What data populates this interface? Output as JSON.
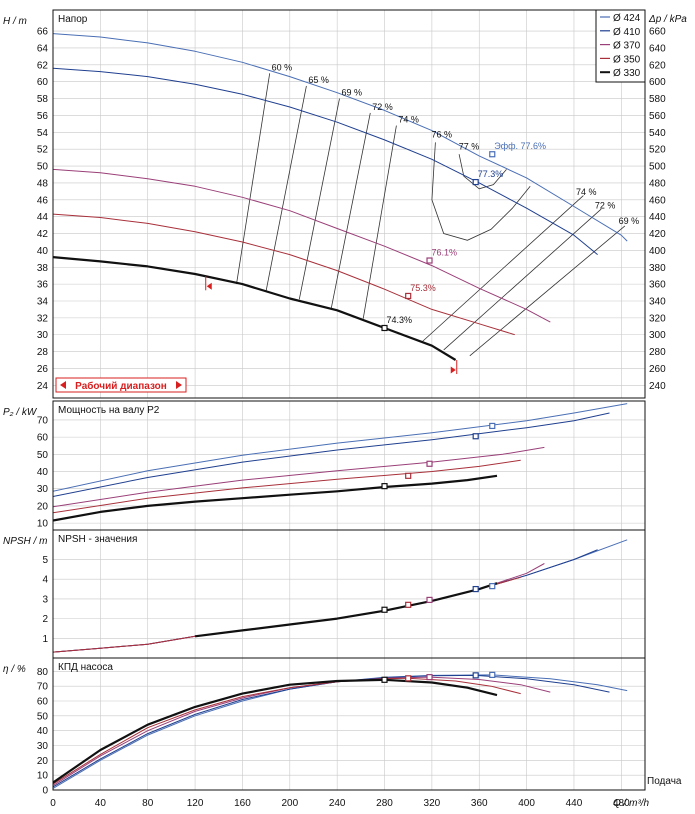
{
  "colors": {
    "d424": "#4a6fb5",
    "d410": "#1f3f8f",
    "d370": "#9a3f78",
    "d350": "#a8303a",
    "d330": "#111111",
    "eff_line": "#333333",
    "range": "#d81f1f"
  },
  "legend": {
    "items": [
      {
        "label": "Ø 424",
        "color_key": "d424"
      },
      {
        "label": "Ø 410",
        "color_key": "d410"
      },
      {
        "label": "Ø 370",
        "color_key": "d370"
      },
      {
        "label": "Ø 350",
        "color_key": "d350"
      },
      {
        "label": "Ø 330",
        "color_key": "d330"
      }
    ]
  },
  "x_axis": {
    "label": "Q / m³/h",
    "caption": "Подача",
    "range": [
      0,
      500
    ],
    "ticks": [
      "0",
      "40",
      "80",
      "120",
      "160",
      "200",
      "240",
      "280",
      "320",
      "360",
      "400",
      "440",
      "480"
    ]
  },
  "panels": {
    "head": {
      "title": "Напор",
      "ylabel": "H / m",
      "y2label": "Δp / kPa",
      "ylim": [
        22.5,
        68.5
      ],
      "yticks": [
        "24",
        "26",
        "28",
        "30",
        "32",
        "34",
        "36",
        "38",
        "40",
        "42",
        "44",
        "46",
        "48",
        "50",
        "52",
        "54",
        "56",
        "58",
        "60",
        "62",
        "64",
        "66"
      ],
      "y2ticks": [
        "240",
        "260",
        "280",
        "300",
        "320",
        "340",
        "360",
        "380",
        "400",
        "420",
        "440",
        "460",
        "480",
        "500",
        "520",
        "540",
        "560",
        "580",
        "600",
        "620",
        "640",
        "660"
      ],
      "range_label": "Рабочий диапазон"
    },
    "power": {
      "title": "Мощность на валу P2",
      "ylabel": "P₂ / kW",
      "ylim": [
        6,
        81
      ],
      "yticks": [
        "10",
        "20",
        "30",
        "40",
        "50",
        "60",
        "70"
      ]
    },
    "npsh": {
      "title": "NPSH - значения",
      "ylabel": "NPSH / m",
      "ylim": [
        0,
        6.5
      ],
      "yticks": [
        "1",
        "2",
        "3",
        "4",
        "5"
      ]
    },
    "eff": {
      "title": "КПД насоса",
      "ylabel": "η / %",
      "ylim": [
        0,
        89
      ],
      "yticks": [
        "0",
        "10",
        "20",
        "30",
        "40",
        "50",
        "60",
        "70",
        "80"
      ]
    }
  },
  "chart_data": [
    {
      "type": "line",
      "title": "Напор",
      "xlabel": "Q / m³/h",
      "ylabel": "H / m",
      "series": [
        {
          "name": "Ø 424",
          "color_key": "d424",
          "x": [
            0,
            40,
            80,
            120,
            160,
            200,
            240,
            280,
            320,
            360,
            400,
            440,
            480,
            485
          ],
          "y": [
            65.7,
            65.3,
            64.6,
            63.6,
            62.3,
            60.6,
            58.7,
            56.6,
            54.2,
            51.2,
            48.6,
            45.2,
            41.8,
            41.1
          ]
        },
        {
          "name": "Ø 410",
          "color_key": "d410",
          "x": [
            0,
            40,
            80,
            120,
            160,
            200,
            240,
            280,
            320,
            360,
            400,
            440,
            460
          ],
          "y": [
            61.6,
            61.2,
            60.6,
            59.7,
            58.5,
            57.0,
            55.2,
            53.1,
            50.8,
            48.0,
            45.0,
            41.8,
            39.5
          ]
        },
        {
          "name": "Ø 370",
          "color_key": "d370",
          "x": [
            0,
            40,
            80,
            120,
            160,
            200,
            240,
            280,
            320,
            360,
            400,
            420
          ],
          "y": [
            49.6,
            49.2,
            48.5,
            47.6,
            46.3,
            44.7,
            42.6,
            40.5,
            38.2,
            35.5,
            33.0,
            31.5
          ]
        },
        {
          "name": "Ø 350",
          "color_key": "d350",
          "x": [
            0,
            40,
            80,
            120,
            160,
            200,
            240,
            280,
            320,
            360,
            390
          ],
          "y": [
            44.3,
            43.9,
            43.2,
            42.2,
            41.0,
            39.5,
            37.6,
            35.4,
            33.0,
            31.3,
            30.0
          ]
        },
        {
          "name": "Ø 330",
          "color_key": "d330",
          "x": [
            0,
            40,
            80,
            120,
            160,
            200,
            240,
            280,
            320,
            340
          ],
          "y": [
            39.2,
            38.7,
            38.1,
            37.2,
            36.0,
            34.3,
            32.9,
            30.8,
            28.7,
            27.0
          ]
        }
      ],
      "markers": [
        {
          "label": "Эфф. 77.6%",
          "x": 371,
          "y": 51.4,
          "color_key": "d424"
        },
        {
          "label": "77.3%",
          "x": 357,
          "y": 48.1,
          "color_key": "d410"
        },
        {
          "label": "76.1%",
          "x": 318,
          "y": 38.8,
          "color_key": "d370"
        },
        {
          "label": "75.3%",
          "x": 300,
          "y": 34.6,
          "color_key": "d350"
        },
        {
          "label": "74.3%",
          "x": 280,
          "y": 30.8,
          "color_key": "d330"
        }
      ],
      "efficiency_labels": [
        {
          "label": "60 %",
          "x": 183,
          "y": 61.0
        },
        {
          "label": "65 %",
          "x": 214,
          "y": 59.5
        },
        {
          "label": "69 %",
          "x": 242,
          "y": 58.0
        },
        {
          "label": "72 %",
          "x": 268,
          "y": 56.3
        },
        {
          "label": "74 %",
          "x": 290,
          "y": 54.8
        },
        {
          "label": "76 %",
          "x": 318,
          "y": 53.0
        },
        {
          "label": "77 %",
          "x": 341,
          "y": 51.6
        },
        {
          "label": "74 %",
          "x": 440,
          "y": 46.2
        },
        {
          "label": "72 %",
          "x": 456,
          "y": 44.6
        },
        {
          "label": "69 %",
          "x": 476,
          "y": 42.8
        }
      ],
      "efficiency_lines": [
        {
          "x": [
            183,
            155
          ],
          "y": [
            61.0,
            36.0
          ]
        },
        {
          "x": [
            214,
            180
          ],
          "y": [
            59.5,
            35.2
          ]
        },
        {
          "x": [
            242,
            208
          ],
          "y": [
            58.0,
            34.2
          ]
        },
        {
          "x": [
            268,
            235
          ],
          "y": [
            56.3,
            33.1
          ]
        },
        {
          "x": [
            290,
            262
          ],
          "y": [
            54.8,
            31.9
          ]
        },
        {
          "x": [
            448,
            312
          ],
          "y": [
            46.5,
            29.2
          ]
        },
        {
          "x": [
            463,
            330
          ],
          "y": [
            44.9,
            28.2
          ]
        },
        {
          "x": [
            483,
            352
          ],
          "y": [
            42.9,
            27.5
          ]
        },
        {
          "x": [
            323,
            320,
            330,
            350,
            370,
            388,
            403
          ],
          "y": [
            52.8,
            46.0,
            42.0,
            41.2,
            42.5,
            45.0,
            47.6
          ]
        },
        {
          "x": [
            343,
            347,
            360,
            372,
            383
          ],
          "y": [
            51.4,
            48.8,
            47.3,
            47.8,
            49.6
          ]
        }
      ],
      "operating_range": {
        "x_min": 129,
        "x_max": 341
      }
    },
    {
      "type": "line",
      "title": "Мощность на валу P2",
      "xlabel": "Q / m³/h",
      "ylabel": "P₂ / kW",
      "series": [
        {
          "name": "Ø 424",
          "color_key": "d424",
          "x": [
            0,
            80,
            160,
            240,
            320,
            400,
            440,
            485
          ],
          "y": [
            28.5,
            40.5,
            49.5,
            56.5,
            62.5,
            69.5,
            74.0,
            79.5
          ]
        },
        {
          "name": "Ø 410",
          "color_key": "d410",
          "x": [
            0,
            80,
            160,
            240,
            320,
            400,
            440,
            470
          ],
          "y": [
            25.5,
            36.5,
            45.5,
            52.5,
            58.5,
            65.5,
            69.5,
            74.0
          ]
        },
        {
          "name": "Ø 370",
          "color_key": "d370",
          "x": [
            0,
            80,
            160,
            240,
            320,
            380,
            415
          ],
          "y": [
            19.5,
            28.0,
            35.0,
            40.5,
            45.5,
            50.0,
            54.0
          ]
        },
        {
          "name": "Ø 350",
          "color_key": "d350",
          "x": [
            0,
            80,
            160,
            240,
            320,
            360,
            395
          ],
          "y": [
            16.0,
            24.5,
            30.5,
            35.5,
            40.0,
            43.0,
            46.5
          ]
        },
        {
          "name": "Ø 330",
          "color_key": "d330",
          "x": [
            0,
            40,
            80,
            120,
            160,
            200,
            240,
            280,
            320,
            350,
            375
          ],
          "y": [
            11.5,
            16.5,
            20.0,
            22.5,
            24.5,
            26.5,
            28.5,
            31.0,
            33.0,
            35.0,
            37.5
          ]
        }
      ],
      "markers": [
        {
          "x": 371,
          "y": 66.5,
          "color_key": "d424"
        },
        {
          "x": 357,
          "y": 60.5,
          "color_key": "d410"
        },
        {
          "x": 318,
          "y": 44.5,
          "color_key": "d370"
        },
        {
          "x": 300,
          "y": 37.5,
          "color_key": "d350"
        },
        {
          "x": 280,
          "y": 31.5,
          "color_key": "d330"
        }
      ]
    },
    {
      "type": "line",
      "title": "NPSH - значения",
      "xlabel": "Q / m³/h",
      "ylabel": "NPSH / m",
      "series": [
        {
          "name": "Ø 424",
          "color_key": "d424",
          "x": [
            0,
            40,
            80,
            120,
            160,
            200,
            240,
            280,
            320,
            360,
            400,
            440,
            485
          ],
          "y": [
            0.3,
            0.5,
            0.7,
            1.1,
            1.4,
            1.7,
            2.0,
            2.4,
            2.9,
            3.5,
            4.2,
            5.0,
            6.0
          ]
        },
        {
          "name": "Ø 410",
          "color_key": "d410",
          "x": [
            0,
            40,
            80,
            120,
            160,
            200,
            240,
            280,
            320,
            360,
            400,
            440,
            460
          ],
          "y": [
            0.3,
            0.5,
            0.7,
            1.1,
            1.4,
            1.7,
            2.0,
            2.4,
            2.9,
            3.5,
            4.2,
            5.0,
            5.5
          ]
        },
        {
          "name": "Ø 370",
          "color_key": "d370",
          "x": [
            0,
            40,
            80,
            120,
            160,
            200,
            240,
            280,
            320,
            360,
            400,
            415
          ],
          "y": [
            0.3,
            0.5,
            0.7,
            1.1,
            1.4,
            1.7,
            2.0,
            2.4,
            2.9,
            3.5,
            4.3,
            4.8
          ]
        },
        {
          "name": "Ø 350",
          "color_key": "d350",
          "x": [
            0,
            40,
            80,
            120,
            160,
            200,
            240,
            280,
            320,
            360,
            395
          ],
          "y": [
            0.3,
            0.5,
            0.7,
            1.1,
            1.4,
            1.7,
            2.0,
            2.4,
            2.9,
            3.5,
            4.1
          ]
        },
        {
          "name": "Ø 330",
          "color_key": "d330",
          "x": [
            120,
            160,
            200,
            240,
            280,
            320,
            360,
            375
          ],
          "y": [
            1.1,
            1.4,
            1.7,
            2.0,
            2.4,
            2.9,
            3.5,
            3.8
          ]
        }
      ],
      "markers": [
        {
          "x": 371,
          "y": 3.65,
          "color_key": "d424"
        },
        {
          "x": 357,
          "y": 3.5,
          "color_key": "d410"
        },
        {
          "x": 318,
          "y": 2.95,
          "color_key": "d370"
        },
        {
          "x": 300,
          "y": 2.7,
          "color_key": "d350"
        },
        {
          "x": 280,
          "y": 2.45,
          "color_key": "d330"
        }
      ]
    },
    {
      "type": "line",
      "title": "КПД насоса",
      "xlabel": "Q / m³/h",
      "ylabel": "η / %",
      "series": [
        {
          "name": "Ø 424",
          "color_key": "d424",
          "x": [
            0,
            40,
            80,
            120,
            160,
            200,
            240,
            280,
            320,
            371,
            420,
            460,
            485
          ],
          "y": [
            1,
            20,
            37,
            50,
            60,
            68,
            73,
            76,
            77.3,
            77.6,
            75,
            71,
            67
          ]
        },
        {
          "name": "Ø 410",
          "color_key": "d410",
          "x": [
            0,
            40,
            80,
            120,
            160,
            200,
            240,
            280,
            320,
            357,
            400,
            440,
            470
          ],
          "y": [
            2,
            21,
            38,
            51,
            61,
            68,
            73,
            75.8,
            77,
            77.3,
            75,
            71,
            66
          ]
        },
        {
          "name": "Ø 370",
          "color_key": "d370",
          "x": [
            0,
            40,
            80,
            120,
            160,
            200,
            240,
            280,
            318,
            360,
            395,
            420
          ],
          "y": [
            3,
            23,
            40,
            53,
            62,
            69,
            73,
            75.3,
            76.1,
            74.5,
            71,
            66
          ]
        },
        {
          "name": "Ø 350",
          "color_key": "d350",
          "x": [
            0,
            40,
            80,
            120,
            160,
            200,
            240,
            280,
            300,
            340,
            370,
            395
          ],
          "y": [
            4,
            24,
            42,
            54,
            63,
            69,
            73,
            75,
            75.3,
            73.5,
            70,
            65
          ]
        },
        {
          "name": "Ø 330",
          "color_key": "d330",
          "x": [
            0,
            40,
            80,
            120,
            160,
            200,
            240,
            280,
            320,
            350,
            375
          ],
          "y": [
            5,
            27,
            44,
            56,
            65,
            71,
            73.5,
            74.3,
            72.5,
            69,
            64
          ]
        }
      ],
      "markers": [
        {
          "x": 371,
          "y": 77.6,
          "color_key": "d424"
        },
        {
          "x": 357,
          "y": 77.3,
          "color_key": "d410"
        },
        {
          "x": 318,
          "y": 76.1,
          "color_key": "d370"
        },
        {
          "x": 300,
          "y": 75.3,
          "color_key": "d350"
        },
        {
          "x": 280,
          "y": 74.3,
          "color_key": "d330"
        }
      ]
    }
  ]
}
